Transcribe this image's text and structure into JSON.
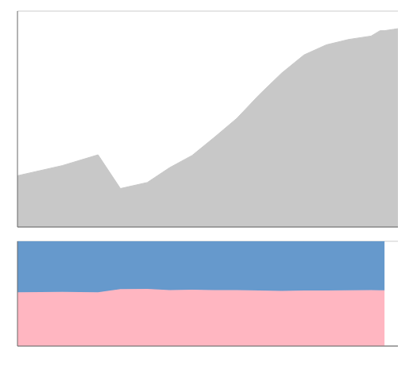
{
  "chart_data": [
    {
      "type": "area",
      "x": [
        1921,
        1931,
        1939,
        1944,
        1950,
        1955,
        1960,
        1965,
        1970,
        1975,
        1980,
        1985,
        1990,
        1995,
        2000,
        2002,
        2003,
        2004,
        2005,
        2006
      ],
      "values": [
        76000,
        91000,
        107000,
        57000,
        66000,
        88000,
        106000,
        133000,
        161000,
        196000,
        228000,
        255000,
        270000,
        278000,
        283000,
        291000,
        291000,
        292000,
        293000,
        294000
      ],
      "color": "#c8c8c8",
      "xlim": [
        1921,
        2006
      ],
      "xticks": [
        1930,
        1940,
        1950,
        1960,
        1970,
        1980,
        1990,
        2000
      ],
      "ylim": [
        0,
        320000
      ],
      "yticks": [
        0,
        50000,
        100000,
        150000,
        200000,
        250000,
        300000
      ],
      "grid": true,
      "tick_labels": false
    },
    {
      "type": "area",
      "stacked": true,
      "x": [
        1921,
        1931,
        1939,
        1944,
        1950,
        1955,
        1960,
        1965,
        1970,
        1975,
        1980,
        1985,
        1990,
        1995,
        2000,
        2002,
        2003
      ],
      "series": [
        {
          "color": "#ffb6c1",
          "values": [
            51.3158,
            51.6484,
            51.4019,
            54.386,
            54.5455,
            53.4091,
            53.7736,
            53.3835,
            53.4161,
            53.0612,
            52.6316,
            52.9412,
            52.963,
            53.2374,
            53.3569,
            53.2646,
            53.2646
          ]
        },
        {
          "color": "#6699cc",
          "values": [
            48.6842,
            48.3516,
            48.5981,
            45.614,
            45.4545,
            46.5909,
            46.2264,
            46.6165,
            46.5839,
            46.9388,
            47.3684,
            47.0588,
            47.037,
            46.7626,
            46.6431,
            46.7354,
            46.7354
          ]
        }
      ],
      "xlim": [
        1921,
        2006
      ],
      "xticks": [
        1930,
        1940,
        1950,
        1960,
        1970,
        1980,
        1990,
        2000
      ],
      "ylim": [
        0,
        100
      ],
      "yticks": [
        0,
        25,
        50,
        75,
        100
      ],
      "grid": true,
      "tick_labels": false
    }
  ]
}
